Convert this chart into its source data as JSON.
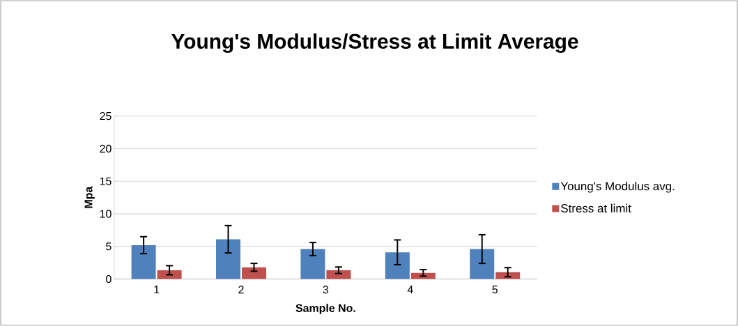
{
  "chart_data": {
    "type": "bar",
    "title": "Young's Modulus/Stress at Limit Average",
    "xlabel": "Sample No.",
    "ylabel": "Mpa",
    "categories": [
      "1",
      "2",
      "3",
      "4",
      "5"
    ],
    "series": [
      {
        "name": "Young's Modulus avg.",
        "color": "#4f81bd",
        "values": [
          5.2,
          6.1,
          4.6,
          4.1,
          4.6
        ],
        "errors": [
          1.3,
          2.1,
          1.0,
          1.9,
          2.2
        ]
      },
      {
        "name": "Stress at limit",
        "color": "#c0504d",
        "values": [
          1.35,
          1.8,
          1.35,
          0.95,
          1.05
        ],
        "errors": [
          0.7,
          0.6,
          0.5,
          0.5,
          0.7
        ]
      }
    ],
    "ylim": [
      0,
      25
    ],
    "yticks": [
      0,
      5,
      10,
      15,
      20,
      25
    ],
    "grid": "y",
    "legend": "right"
  }
}
